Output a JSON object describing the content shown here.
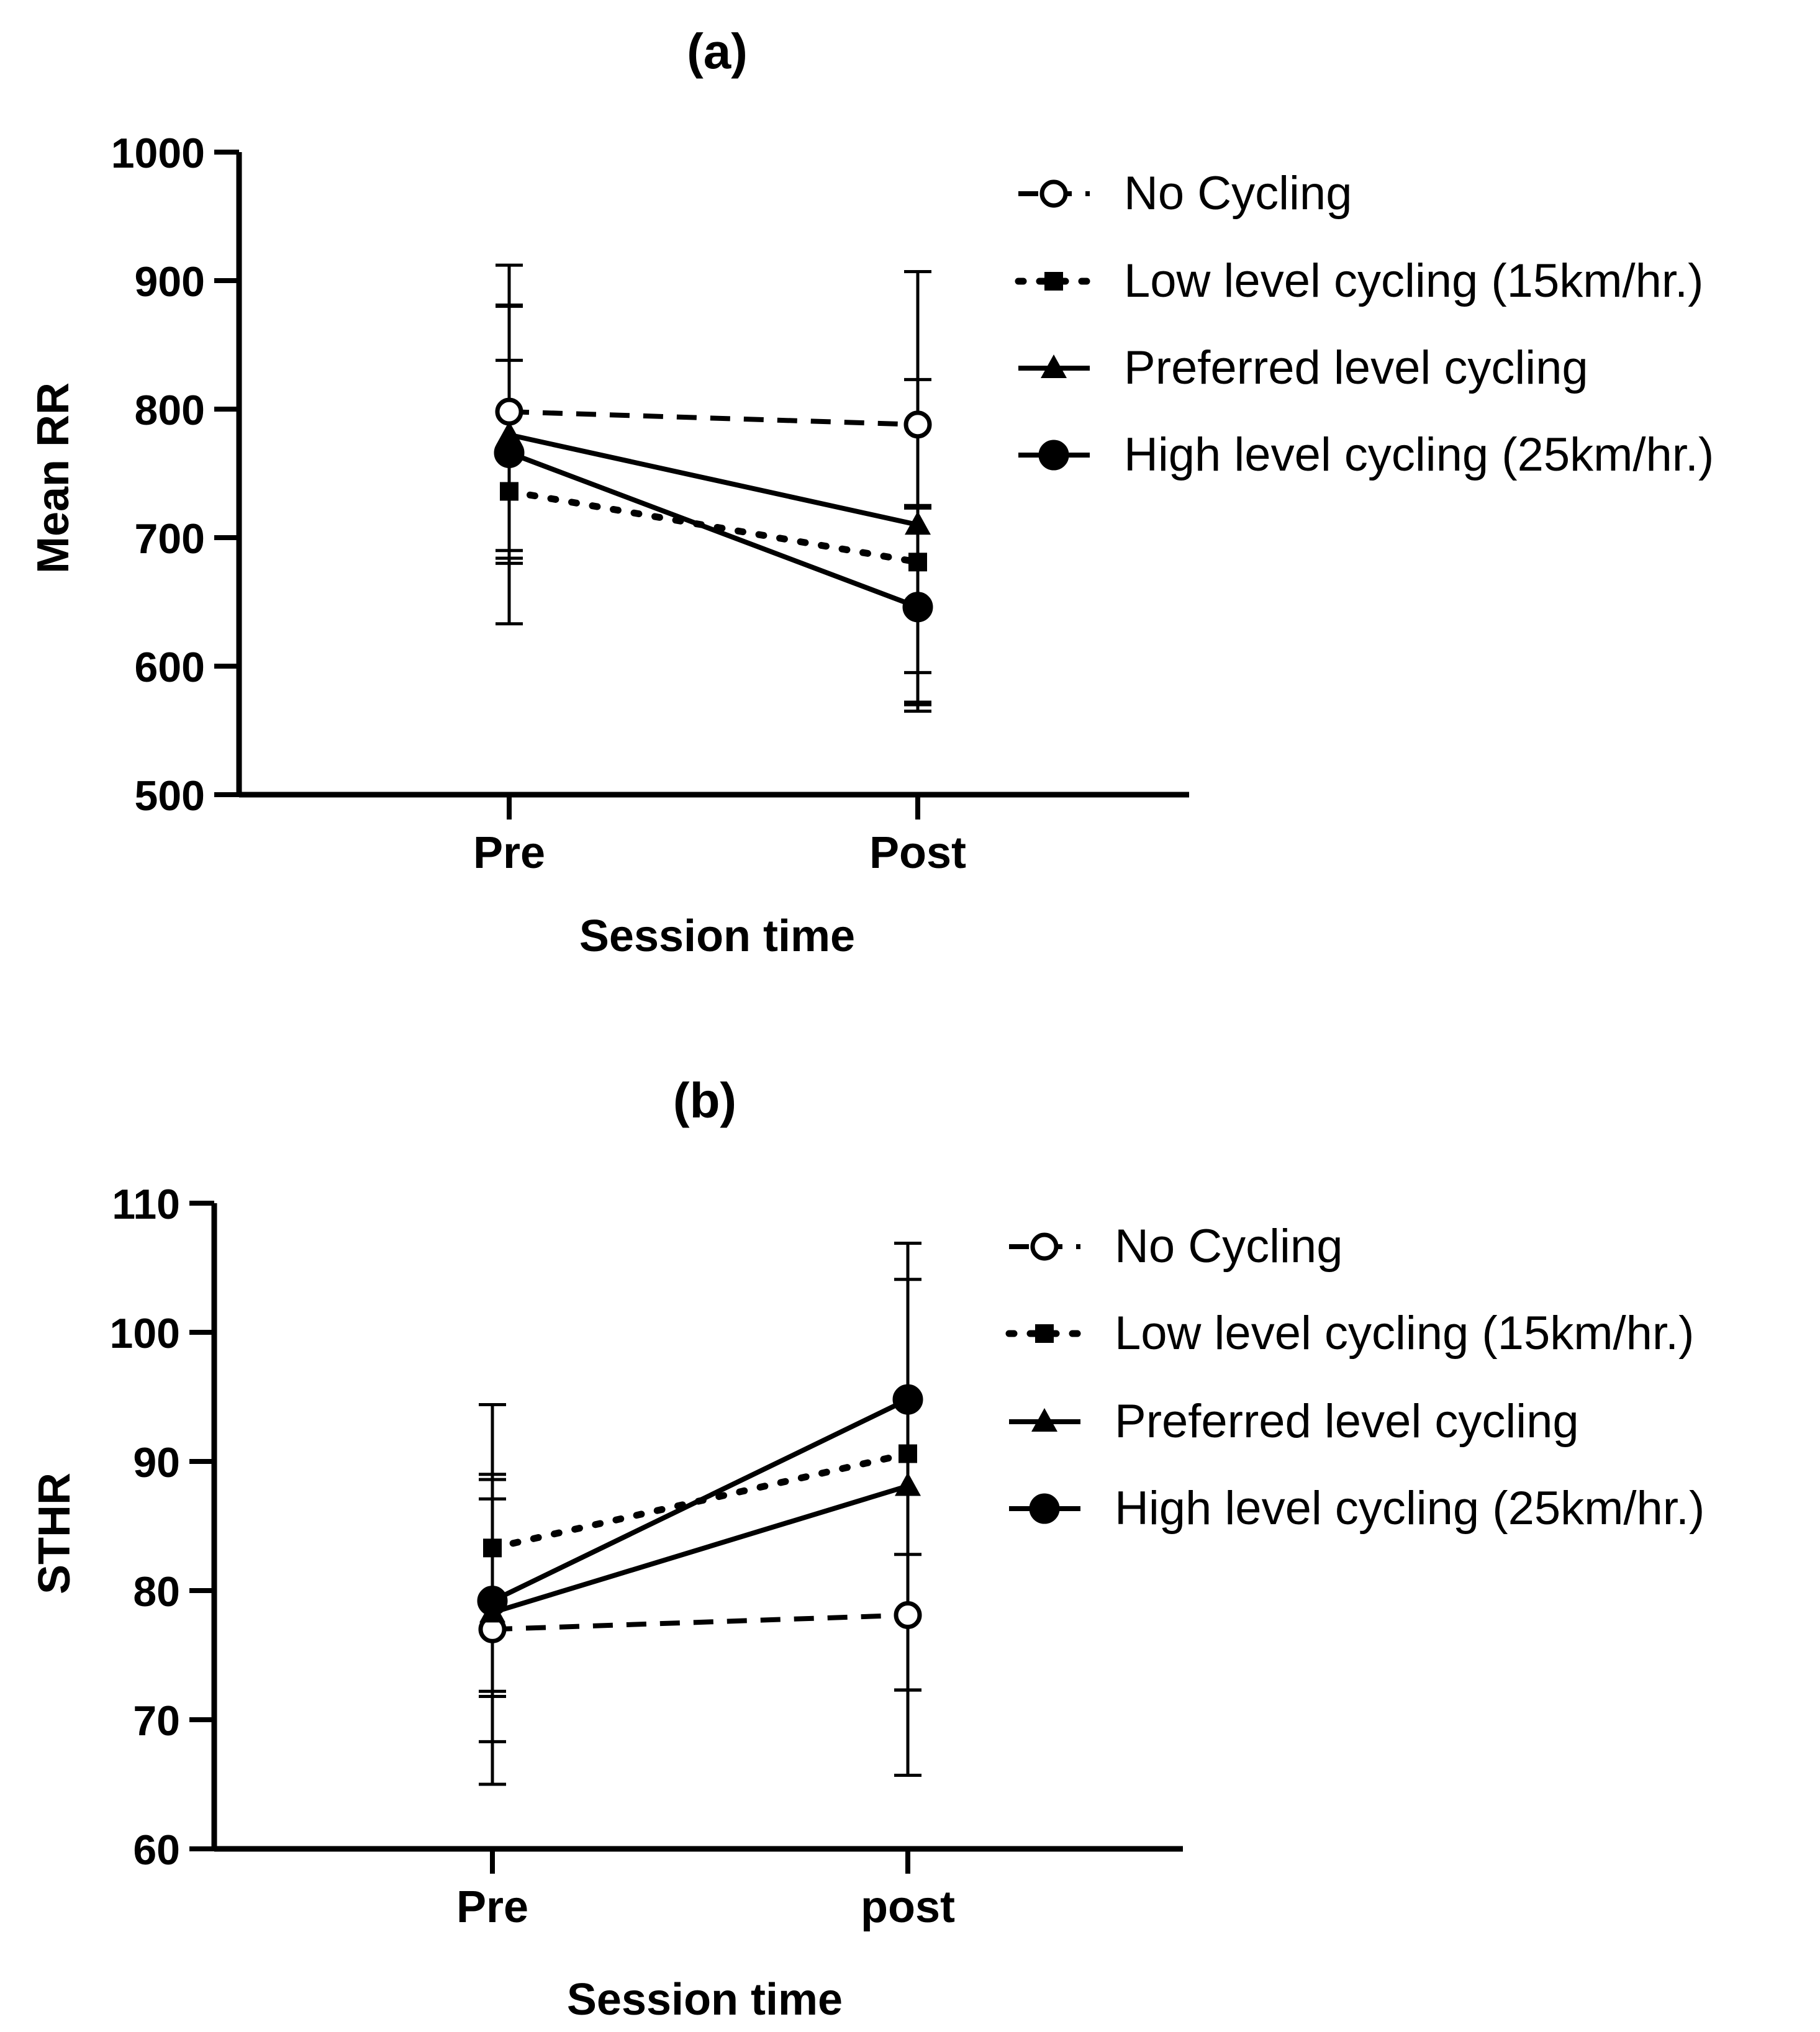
{
  "chart_data": [
    {
      "type": "line",
      "panel_label": "(a)",
      "xlabel": "Session time",
      "ylabel": "Mean RR",
      "categories": [
        "Pre",
        "Post"
      ],
      "ylim": [
        500,
        1000
      ],
      "yticks": [
        "500",
        "600",
        "700",
        "800",
        "900",
        "1000"
      ],
      "series": [
        {
          "name": "No Cycling",
          "marker": "open-circle",
          "line": "dashed",
          "values": [
            798,
            788
          ],
          "error_high": [
            881,
            907
          ],
          "error_low": [
            680,
            570
          ]
        },
        {
          "name": "Low level cycling (15km/hr.)",
          "marker": "square",
          "line": "dotted",
          "values": [
            736,
            681
          ],
          "error_high": [
            838,
            725
          ],
          "error_low": [
            633,
            565
          ]
        },
        {
          "name": "Preferred level cycling",
          "marker": "triangle",
          "line": "solid",
          "values": [
            780,
            710
          ],
          "error_high": [
            912,
            823
          ],
          "error_low": [
            684,
            595
          ]
        },
        {
          "name": "High level cycling (25km/hr.)",
          "marker": "filled-circle",
          "line": "solid",
          "values": [
            766,
            646
          ],
          "error_high": [
            880,
            723
          ],
          "error_low": [
            690,
            572
          ]
        }
      ]
    },
    {
      "type": "line",
      "panel_label": "(b)",
      "xlabel": "Session time",
      "ylabel": "STHR",
      "categories": [
        "Pre",
        "post"
      ],
      "ylim": [
        60,
        110
      ],
      "yticks": [
        "60",
        "70",
        "80",
        "90",
        "100",
        "110"
      ],
      "series": [
        {
          "name": "No Cycling",
          "marker": "open-circle",
          "line": "dashed",
          "values": [
            77,
            78.1
          ],
          "error_high": [
            87.1,
            82.8
          ],
          "error_low": [
            65.0,
            72.3
          ]
        },
        {
          "name": "Low level cycling (15km/hr.)",
          "marker": "square",
          "line": "dotted",
          "values": [
            83.3,
            90.6
          ],
          "error_high": [
            94.4,
            106.9
          ],
          "error_low": [
            72.2,
            72.3
          ]
        },
        {
          "name": "Preferred level cycling",
          "marker": "triangle",
          "line": "solid",
          "values": [
            78.3,
            88.1
          ],
          "error_high": [
            88.6,
            104.1
          ],
          "error_low": [
            68.3,
            72.3
          ]
        },
        {
          "name": "High level cycling (25km/hr.)",
          "marker": "filled-circle",
          "line": "solid",
          "values": [
            79.2,
            94.8
          ],
          "error_high": [
            89.0,
            106.9
          ],
          "error_low": [
            71.8,
            65.7
          ]
        }
      ]
    }
  ]
}
